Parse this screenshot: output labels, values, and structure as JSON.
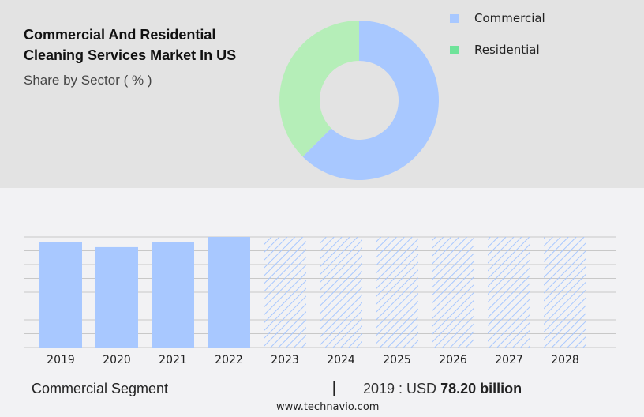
{
  "title_line1": "Commercial And Residential",
  "title_line2": "Cleaning Services Market In US",
  "subtitle": "Share by Sector ( % )",
  "chart_data": [
    {
      "type": "pie",
      "variant": "donut",
      "labels": [
        "Commercial",
        "Residential"
      ],
      "values": [
        62.5,
        37.5
      ],
      "colors": [
        "#a8c8ff",
        "#b5eeb8"
      ],
      "legend_colors": [
        "#a8c8ff",
        "#6fe39a"
      ],
      "legend": "top-right"
    },
    {
      "type": "bar",
      "categories": [
        "2019",
        "2020",
        "2021",
        "2022",
        "2023",
        "2024",
        "2025",
        "2026",
        "2027",
        "2028"
      ],
      "values": [
        78.2,
        74.7,
        78.2,
        82.3,
        null,
        null,
        null,
        null,
        null,
        null
      ],
      "forecast": [
        "2023",
        "2024",
        "2025",
        "2026",
        "2027",
        "2028"
      ],
      "color": "#a8c8ff",
      "grid": true,
      "ylim": [
        0,
        82.3
      ]
    }
  ],
  "footer": {
    "segment": "Commercial Segment",
    "separator": "|",
    "year_label": "2019 : USD",
    "value": "78.20 billion",
    "url": "www.technavio.com"
  }
}
